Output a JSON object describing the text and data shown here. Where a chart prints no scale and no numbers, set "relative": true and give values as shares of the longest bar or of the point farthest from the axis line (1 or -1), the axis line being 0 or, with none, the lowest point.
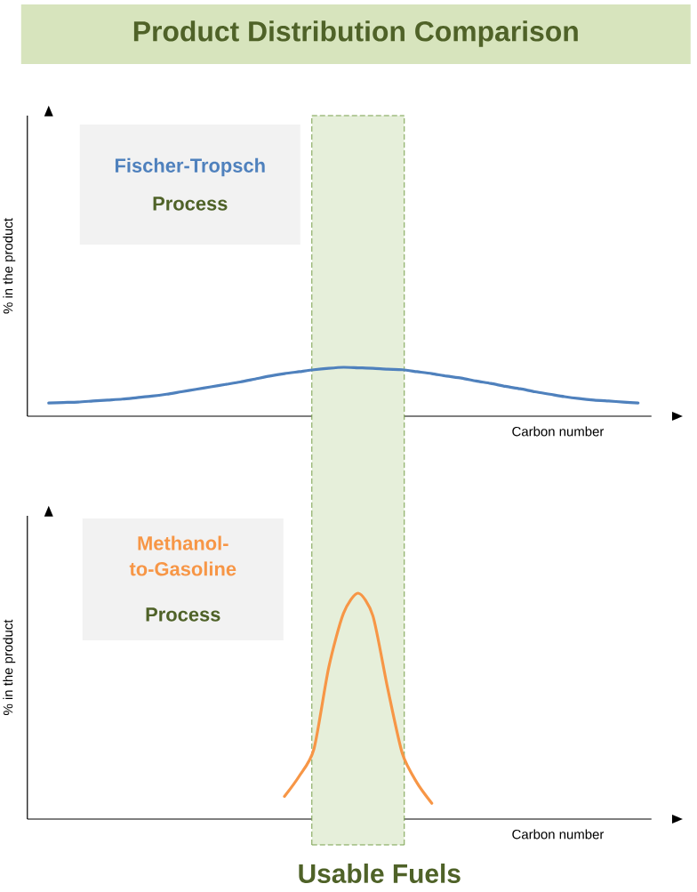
{
  "chart_data": [
    {
      "type": "line",
      "title": "Product Distribution Comparison",
      "xlabel": "Carbon number",
      "ylabel": "% in the product",
      "relative": true,
      "categories": [
        null,
        null,
        null,
        null,
        null,
        null,
        null,
        null,
        null,
        null,
        null,
        null,
        null,
        null,
        null,
        null,
        null,
        null,
        null,
        null,
        null,
        null,
        null,
        null,
        null,
        null,
        null,
        null,
        null,
        null,
        null,
        null,
        null,
        null,
        null,
        null,
        null,
        null,
        null,
        null,
        null
      ],
      "series": [
        {
          "name": "Fischer-Tropsch",
          "color": "#4f81bd",
          "values": [
            0.27,
            0.28,
            0.29,
            0.31,
            0.33,
            0.35,
            0.38,
            0.41,
            0.45,
            0.5,
            0.55,
            0.6,
            0.65,
            0.7,
            0.76,
            0.82,
            0.87,
            0.91,
            0.95,
            0.98,
            1,
            0.99,
            0.98,
            0.96,
            0.95,
            0.91,
            0.87,
            0.82,
            0.78,
            0.72,
            0.67,
            0.61,
            0.56,
            0.5,
            0.45,
            0.4,
            0.36,
            0.33,
            0.31,
            0.29,
            0.27
          ]
        }
      ],
      "annotations": [
        "Process"
      ]
    },
    {
      "type": "line",
      "xlabel": "Carbon number",
      "ylabel": "% in the product",
      "relative": true,
      "categories": [
        null,
        null,
        null,
        null,
        null,
        null,
        null,
        null,
        null,
        null,
        null,
        null,
        null,
        null,
        null,
        null,
        null,
        null,
        null,
        null,
        null,
        null,
        null,
        null,
        null,
        null,
        null,
        null,
        null,
        null,
        null,
        null,
        null,
        null,
        null,
        null,
        null,
        null,
        null,
        null,
        null
      ],
      "series": [
        {
          "name": "Methanol-to-Gasoline",
          "color": "#f79646",
          "values": [
            null,
            null,
            null,
            null,
            null,
            null,
            null,
            null,
            null,
            null,
            null,
            null,
            null,
            null,
            null,
            null,
            0.1,
            0.19,
            0.31,
            0.67,
            0.91,
            1,
            0.9,
            0.58,
            0.29,
            0.16,
            0.07,
            null,
            null,
            null,
            null,
            null,
            null,
            null,
            null,
            null,
            null,
            null,
            null,
            null,
            null
          ]
        }
      ],
      "annotations": [
        "Process",
        "Usable Fuels"
      ]
    }
  ]
}
